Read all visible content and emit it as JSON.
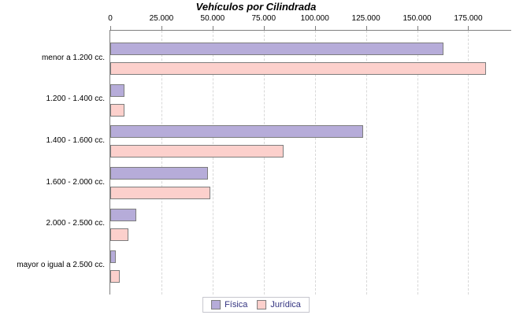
{
  "title": "Vehículos por Cilindrada",
  "chart_data": {
    "type": "bar",
    "orientation": "horizontal",
    "title": "Vehículos por Cilindrada",
    "categories": [
      "menor a 1.200 cc.",
      "1.200 - 1.400 cc.",
      "1.400 - 1.600 cc.",
      "1.600 - 2.000 cc.",
      "2.000 - 2.500 cc.",
      "mayor o igual a 2.500 cc."
    ],
    "series": [
      {
        "name": "Física",
        "color": "#b6acd9",
        "values": [
          162000,
          6000,
          123000,
          47000,
          12000,
          2000
        ]
      },
      {
        "name": "Jurídica",
        "color": "#fcd0cc",
        "values": [
          183000,
          6000,
          84000,
          48000,
          8000,
          4000
        ]
      }
    ],
    "x_axis": {
      "position": "top",
      "min": 0,
      "max": 196000,
      "ticks": [
        0,
        25000,
        50000,
        75000,
        100000,
        125000,
        150000,
        175000
      ],
      "tick_labels": [
        "0",
        "25.000",
        "50.000",
        "75.000",
        "100.000",
        "125.000",
        "150.000",
        "175.000"
      ]
    },
    "grid": true,
    "legend_position": "bottom",
    "legend_entries": [
      "Física",
      "Jurídica"
    ]
  }
}
